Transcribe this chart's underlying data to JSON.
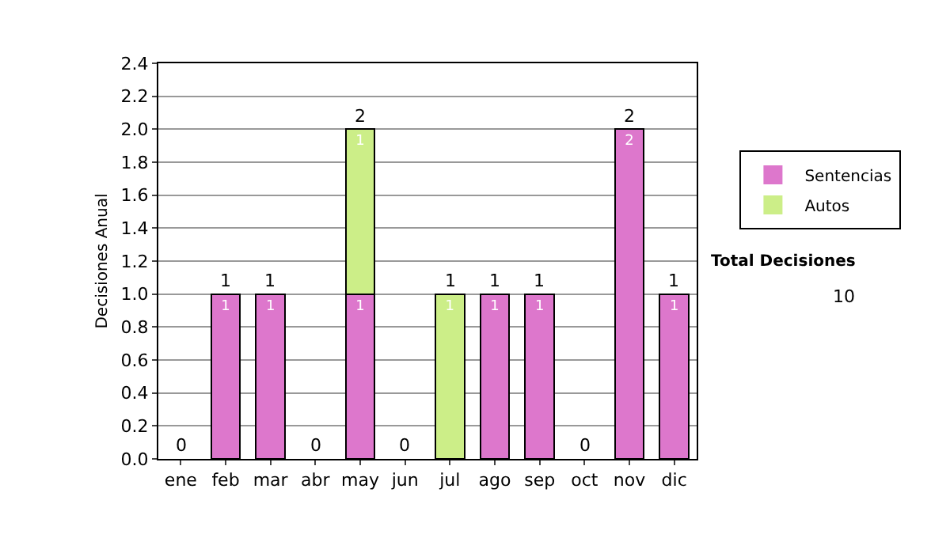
{
  "chart_data": {
    "type": "bar",
    "stacked": true,
    "ylabel": "Decisiones Anual",
    "categories": [
      "ene",
      "feb",
      "mar",
      "abr",
      "may",
      "jun",
      "jul",
      "ago",
      "sep",
      "oct",
      "nov",
      "dic"
    ],
    "series": [
      {
        "name": "Sentencias",
        "color": "#dd77cc",
        "values": [
          0,
          1,
          1,
          0,
          1,
          0,
          0,
          1,
          1,
          0,
          2,
          1
        ],
        "value_labels": [
          null,
          "1",
          "1",
          null,
          "1",
          null,
          null,
          "1",
          "1",
          null,
          "2",
          "1"
        ]
      },
      {
        "name": "Autos",
        "color": "#ccee88",
        "values": [
          0,
          0,
          0,
          0,
          1,
          0,
          1,
          0,
          0,
          0,
          0,
          0
        ],
        "value_labels": [
          null,
          null,
          null,
          null,
          "1",
          null,
          "1",
          null,
          null,
          null,
          null,
          null
        ]
      }
    ],
    "totals": [
      "0",
      "1",
      "1",
      "0",
      "2",
      "0",
      "1",
      "1",
      "1",
      "0",
      "2",
      "1"
    ],
    "ylim": [
      0,
      2.4
    ],
    "yticks": [
      {
        "value": 0,
        "label": "0.0"
      },
      {
        "value": 0.2,
        "label": "0.2"
      },
      {
        "value": 0.4,
        "label": "0.4"
      },
      {
        "value": 0.6,
        "label": "0.6"
      },
      {
        "value": 0.8,
        "label": "0.8"
      },
      {
        "value": 1,
        "label": "1.0"
      },
      {
        "value": 1.2,
        "label": "1.2"
      },
      {
        "value": 1.4,
        "label": "1.4"
      },
      {
        "value": 1.6,
        "label": "1.6"
      },
      {
        "value": 1.8,
        "label": "1.8"
      },
      {
        "value": 2,
        "label": "2.0"
      },
      {
        "value": 2.2,
        "label": "2.2"
      },
      {
        "value": 2.4,
        "label": "2.4"
      }
    ],
    "grid": "y",
    "legend": "right",
    "annotations": [
      "Total Decisiones",
      "10"
    ]
  }
}
